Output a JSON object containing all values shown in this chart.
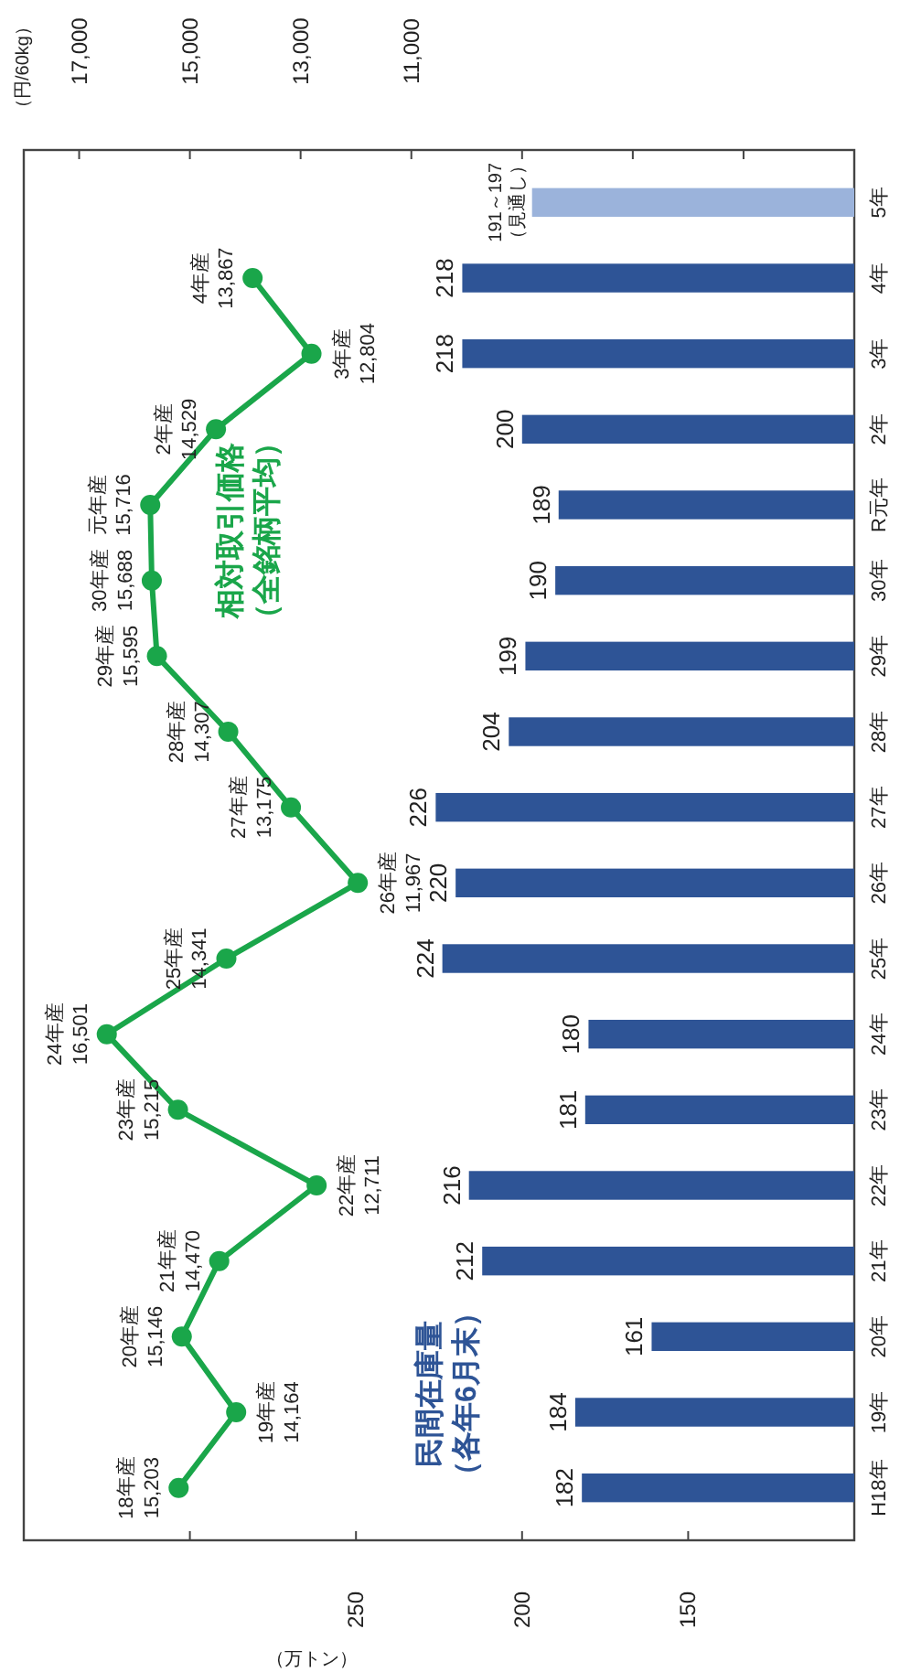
{
  "chart_data": {
    "type": "bar",
    "orientation": "horizontal",
    "categories": [
      "5年",
      "4年",
      "3年",
      "2年",
      "R元年",
      "30年",
      "29年",
      "28年",
      "27年",
      "26年",
      "25年",
      "24年",
      "23年",
      "22年",
      "21年",
      "20年",
      "19年",
      "H18年"
    ],
    "xlabel": "（万トン）",
    "x2label": "（円/60kg）",
    "xlim": [
      350,
      100
    ],
    "xticks": [
      {
        "value": 300,
        "label": null
      },
      250,
      200,
      150
    ],
    "x2lim": [
      18000,
      3000
    ],
    "x2ticks": [
      {
        "value": 17000,
        "label": "17,000"
      },
      {
        "value": 15000,
        "label": "15,000"
      },
      {
        "value": 13000,
        "label": "13,000"
      },
      {
        "value": 11000,
        "label": "11,000"
      },
      {
        "value": 9000,
        "label": null
      },
      {
        "value": 7000,
        "label": null
      },
      {
        "value": 5000,
        "label": null
      }
    ],
    "marker": "circle",
    "series": [
      {
        "name": "民間在庫量（各年6月末）",
        "color": "#2e5496",
        "colors": [
          "#9bb3db",
          "#2e5496",
          "#2e5496",
          "#2e5496",
          "#2e5496",
          "#2e5496",
          "#2e5496",
          "#2e5496",
          "#2e5496",
          "#2e5496",
          "#2e5496",
          "#2e5496",
          "#2e5496",
          "#2e5496",
          "#2e5496",
          "#2e5496",
          "#2e5496",
          "#2e5496"
        ],
        "values": [
          197,
          218,
          218,
          200,
          189,
          190,
          199,
          204,
          226,
          220,
          224,
          180,
          181,
          216,
          212,
          161,
          184,
          182
        ],
        "value_labels": [
          "191～197（見通し）",
          "218",
          "218",
          "200",
          "189",
          "190",
          "199",
          "204",
          "226",
          "220",
          "224",
          "180",
          "181",
          "216",
          "212",
          "161",
          "184",
          "182"
        ]
      },
      {
        "name": "相対取引価格（全銘柄平均）",
        "type": "line",
        "axis": "x2",
        "color": "#1aa64a",
        "values": [
          null,
          13867,
          12804,
          14529,
          15716,
          15688,
          15595,
          14307,
          13175,
          11967,
          14341,
          16501,
          15215,
          12711,
          14470,
          15146,
          14164,
          15203
        ],
        "value_labels": [
          null,
          "4年産 13,867",
          "3年産 12,804",
          "2年産 14,529",
          "元年産 15,716",
          "30年産 15,688",
          "29年産 15,595",
          "28年産 14,307",
          "27年産 13,175",
          "26年産 11,967",
          "25年産 14,341",
          "24年産 16,501",
          "23年産 15,215",
          "22年産 12,711",
          "21年産 14,470",
          "20年産 15,146",
          "19年産 14,164",
          "18年産 15,203"
        ]
      }
    ]
  }
}
